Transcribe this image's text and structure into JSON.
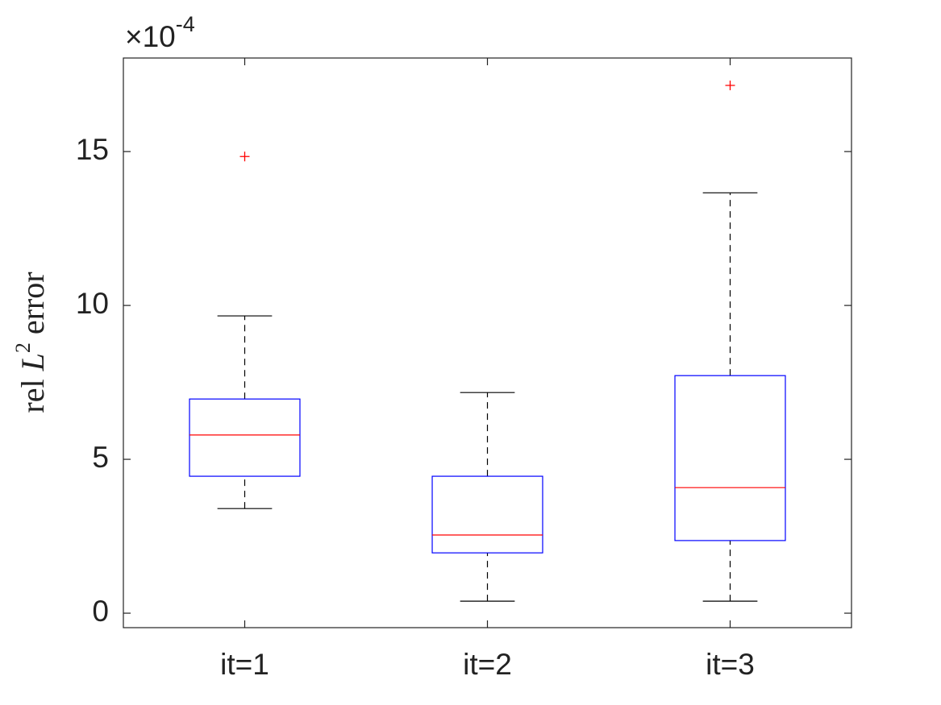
{
  "chart_data": {
    "type": "box",
    "ylabel": {
      "text": "rel ",
      "symbol": "L",
      "sup": "2",
      "suffix": " error"
    },
    "y_multiplier": {
      "base": "×10",
      "exponent": "-4"
    },
    "categories": [
      "it=1",
      "it=2",
      "it=3"
    ],
    "boxes": [
      {
        "whisker_low": 3.4,
        "q1": 4.45,
        "median": 5.79,
        "q3": 6.96,
        "whisker_high": 9.66,
        "outliers": [
          14.84
        ]
      },
      {
        "whisker_low": 0.39,
        "q1": 1.96,
        "median": 2.54,
        "q3": 4.45,
        "whisker_high": 7.17,
        "outliers": []
      },
      {
        "whisker_low": 0.39,
        "q1": 2.36,
        "median": 4.08,
        "q3": 7.72,
        "whisker_high": 13.66,
        "outliers": [
          17.15
        ]
      }
    ],
    "box_color": "#0000ff",
    "median_color": "#ff0000",
    "whisker_color": "#000000",
    "outlier_color": "#ff0000",
    "ylim": [
      -0.47,
      18.04
    ],
    "yticks": [
      0,
      5,
      10,
      15
    ]
  }
}
